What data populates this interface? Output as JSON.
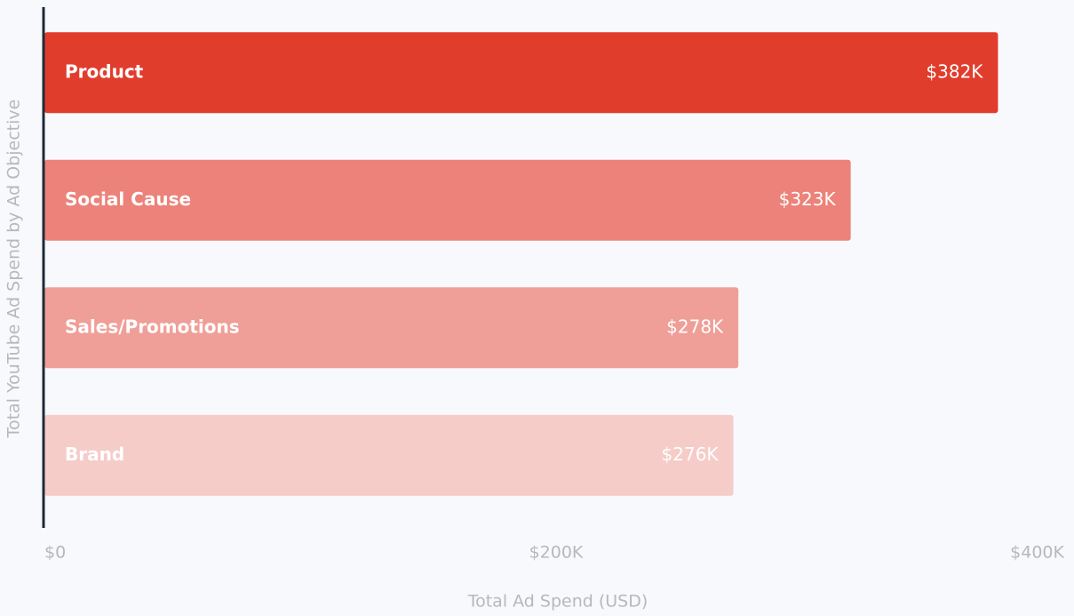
{
  "chart_data": {
    "type": "bar",
    "orientation": "horizontal",
    "y_label": "Total YouTube Ad Spend by Ad Objective",
    "x_label": "Total Ad Spend (USD)",
    "categories": [
      "Product",
      "Social Cause",
      "Sales/Promotions",
      "Brand"
    ],
    "values": [
      382000,
      323000,
      278000,
      276000
    ],
    "value_labels": [
      "$382K",
      "$323K",
      "$278K",
      "$276K"
    ],
    "colors": [
      "#e13d2d",
      "#ec8279",
      "#ef9f98",
      "#f5ccc8"
    ],
    "xlim": [
      0,
      400000
    ],
    "xticks": [
      {
        "value": 0,
        "label": "$0"
      },
      {
        "value": 200000,
        "label": "$200K"
      },
      {
        "value": 400000,
        "label": "$400K"
      }
    ]
  }
}
